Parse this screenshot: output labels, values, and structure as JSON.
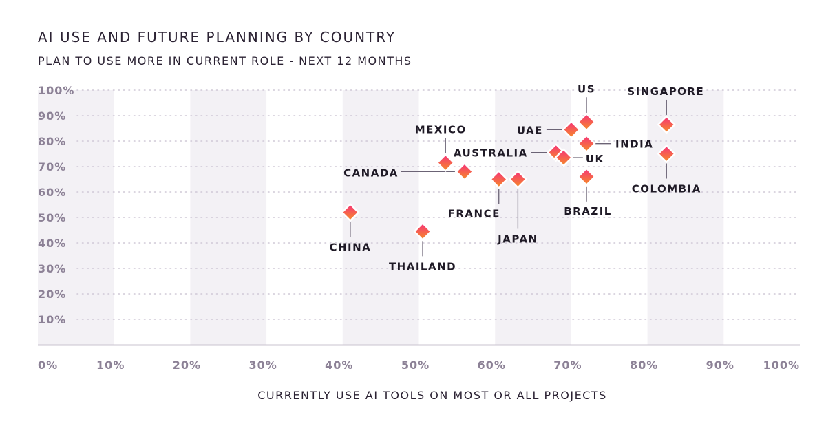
{
  "chart_data": {
    "type": "scatter",
    "title": "AI USE AND FUTURE PLANNING BY COUNTRY",
    "ylabel": "PLAN TO USE MORE IN CURRENT ROLE - NEXT 12 MONTHS",
    "xlabel": "CURRENTLY USE AI TOOLS ON MOST OR ALL PROJECTS",
    "xlim": [
      0,
      100
    ],
    "ylim": [
      0,
      100
    ],
    "x_ticks": [
      "0%",
      "10%",
      "20%",
      "30%",
      "40%",
      "50%",
      "60%",
      "70%",
      "80%",
      "90%",
      "100%"
    ],
    "y_ticks": [
      "10%",
      "20%",
      "30%",
      "40%",
      "50%",
      "60%",
      "70%",
      "80%",
      "90%",
      "100%"
    ],
    "grid": true,
    "colors": {
      "marker_top": "#f7317a",
      "marker_bottom": "#f58d26",
      "band": "#f3f1f5",
      "grid": "#cfc8d6",
      "axis": "#c9c3cf",
      "tick": "#8c8196"
    },
    "points": [
      {
        "label": "SINGAPORE",
        "x": 82.5,
        "y": 86.5
      },
      {
        "label": "US",
        "x": 72,
        "y": 87.5
      },
      {
        "label": "UAE",
        "x": 70,
        "y": 84.5
      },
      {
        "label": "INDIA",
        "x": 72,
        "y": 79
      },
      {
        "label": "AUSTRALIA",
        "x": 68,
        "y": 75.5
      },
      {
        "label": "UK",
        "x": 69,
        "y": 73.5
      },
      {
        "label": "COLOMBIA",
        "x": 82.5,
        "y": 75
      },
      {
        "label": "MEXICO",
        "x": 53.5,
        "y": 71.5
      },
      {
        "label": "CANADA",
        "x": 56,
        "y": 68
      },
      {
        "label": "BRAZIL",
        "x": 72,
        "y": 66
      },
      {
        "label": "FRANCE",
        "x": 60.5,
        "y": 65
      },
      {
        "label": "JAPAN",
        "x": 63,
        "y": 65
      },
      {
        "label": "CHINA",
        "x": 41,
        "y": 52
      },
      {
        "label": "THAILAND",
        "x": 50.5,
        "y": 44.5
      }
    ]
  }
}
